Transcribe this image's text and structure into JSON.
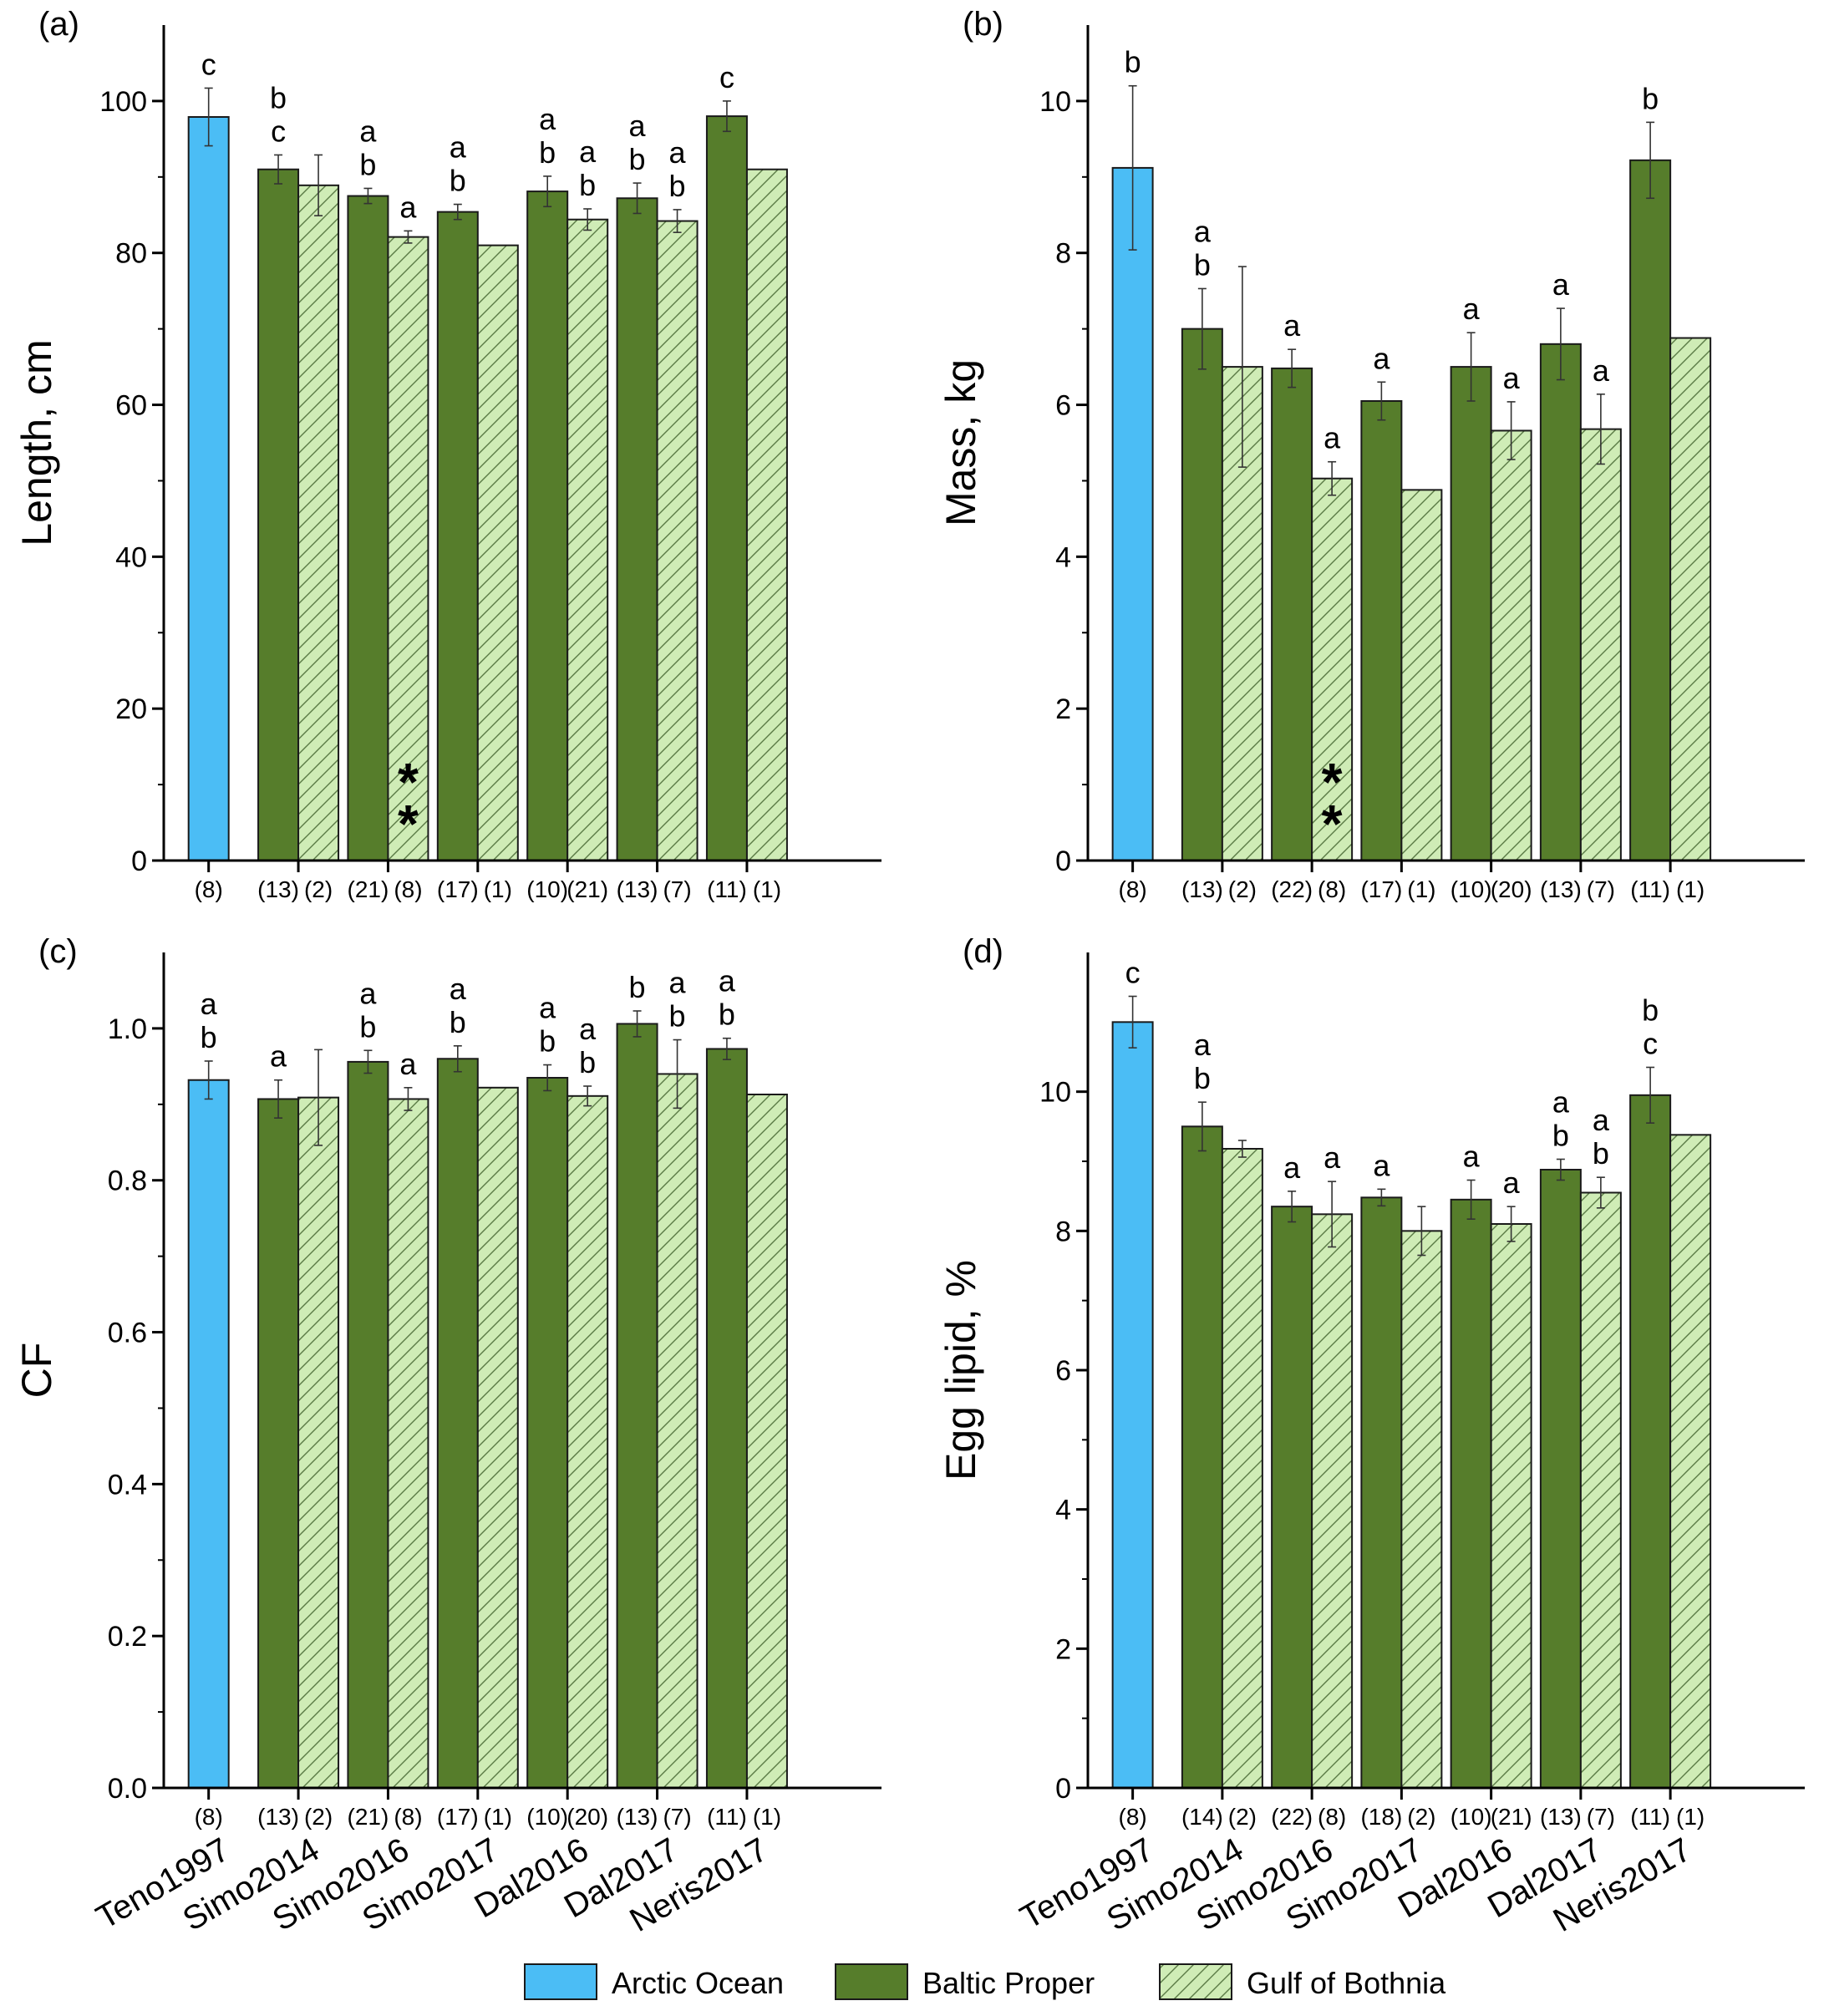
{
  "colors": {
    "Arctic Ocean": "#4bbdf5",
    "Baltic Proper": "#567d2b",
    "Gulf of Bothnia": "#cfecb6",
    "hatch": "#5a7a45",
    "outline": "#1a1a1a"
  },
  "categories": [
    "Teno1997",
    "Simo2014",
    "Simo2016",
    "Simo2017",
    "Dal2016",
    "Dal2017",
    "Neris2017"
  ],
  "legend": {
    "items": [
      {
        "name": "Arctic Ocean",
        "label": "Arctic Ocean",
        "fill": "#4bbdf5",
        "hatched": false
      },
      {
        "name": "Baltic Proper",
        "label": "Baltic Proper",
        "fill": "#567d2b",
        "hatched": false
      },
      {
        "name": "Gulf of Bothnia",
        "label": "Gulf of Bothnia",
        "fill": "#cfecb6",
        "hatched": true
      }
    ]
  },
  "chart_data": [
    {
      "type": "bar",
      "panel": "(a)",
      "ylabel": "Length, cm",
      "ylim": [
        0,
        110
      ],
      "yticks": [
        0,
        20,
        40,
        60,
        80,
        100
      ],
      "ytick_labels": [
        "0",
        "20",
        "40",
        "60",
        "80",
        "100"
      ],
      "categories": [
        "Teno1997",
        "Simo2014",
        "Simo2016",
        "Simo2017",
        "Dal2016",
        "Dal2017",
        "Neris2017"
      ],
      "bars": [
        {
          "category": "Teno1997",
          "group": "Arctic Ocean",
          "value": 97.9,
          "err": 3.8,
          "n": "(8)",
          "letters": [
            "c"
          ]
        },
        {
          "category": "Simo2014",
          "group": "Baltic Proper",
          "value": 91.0,
          "err": 1.9,
          "n": "(13)",
          "letters": [
            "b",
            "c"
          ]
        },
        {
          "category": "Simo2014",
          "group": "Gulf of Bothnia",
          "value": 88.9,
          "err": 4.0,
          "n": "(2)",
          "letters": []
        },
        {
          "category": "Simo2016",
          "group": "Baltic Proper",
          "value": 87.5,
          "err": 1.0,
          "n": "(21)",
          "letters": [
            "a",
            "b"
          ]
        },
        {
          "category": "Simo2016",
          "group": "Gulf of Bothnia",
          "value": 82.1,
          "err": 0.8,
          "n": "(8)",
          "letters": [
            "a"
          ],
          "note": "**"
        },
        {
          "category": "Simo2017",
          "group": "Baltic Proper",
          "value": 85.4,
          "err": 1.0,
          "n": "(17)",
          "letters": [
            "a",
            "b"
          ]
        },
        {
          "category": "Simo2017",
          "group": "Gulf of Bothnia",
          "value": 81.0,
          "err": 0,
          "n": "(1)",
          "letters": []
        },
        {
          "category": "Dal2016",
          "group": "Baltic Proper",
          "value": 88.1,
          "err": 2.0,
          "n": "(10)",
          "letters": [
            "a",
            "b"
          ]
        },
        {
          "category": "Dal2016",
          "group": "Gulf of Bothnia",
          "value": 84.4,
          "err": 1.4,
          "n": "(21)",
          "letters": [
            "a",
            "b"
          ]
        },
        {
          "category": "Dal2017",
          "group": "Baltic Proper",
          "value": 87.2,
          "err": 2.0,
          "n": "(13)",
          "letters": [
            "a",
            "b"
          ]
        },
        {
          "category": "Dal2017",
          "group": "Gulf of Bothnia",
          "value": 84.2,
          "err": 1.5,
          "n": "(7)",
          "letters": [
            "a",
            "b"
          ]
        },
        {
          "category": "Neris2017",
          "group": "Baltic Proper",
          "value": 98.0,
          "err": 2.0,
          "n": "(11)",
          "letters": [
            "c"
          ]
        },
        {
          "category": "Neris2017",
          "group": "Gulf of Bothnia",
          "value": 91.0,
          "err": 0,
          "n": "(1)",
          "letters": []
        }
      ]
    },
    {
      "type": "bar",
      "panel": "(b)",
      "ylabel": "Mass, kg",
      "ylim": [
        0,
        11
      ],
      "yticks": [
        0,
        2,
        4,
        6,
        8,
        10
      ],
      "ytick_labels": [
        "0",
        "2",
        "4",
        "6",
        "8",
        "10"
      ],
      "categories": [
        "Teno1997",
        "Simo2014",
        "Simo2016",
        "Simo2017",
        "Dal2016",
        "Dal2017",
        "Neris2017"
      ],
      "bars": [
        {
          "category": "Teno1997",
          "group": "Arctic Ocean",
          "value": 9.12,
          "err": 1.08,
          "n": "(8)",
          "letters": [
            "b"
          ]
        },
        {
          "category": "Simo2014",
          "group": "Baltic Proper",
          "value": 7.0,
          "err": 0.53,
          "n": "(13)",
          "letters": [
            "a",
            "b"
          ]
        },
        {
          "category": "Simo2014",
          "group": "Gulf of Bothnia",
          "value": 6.5,
          "err": 1.32,
          "n": "(2)",
          "letters": []
        },
        {
          "category": "Simo2016",
          "group": "Baltic Proper",
          "value": 6.48,
          "err": 0.25,
          "n": "(22)",
          "letters": [
            "a"
          ]
        },
        {
          "category": "Simo2016",
          "group": "Gulf of Bothnia",
          "value": 5.03,
          "err": 0.22,
          "n": "(8)",
          "letters": [
            "a"
          ],
          "note": "**"
        },
        {
          "category": "Simo2017",
          "group": "Baltic Proper",
          "value": 6.05,
          "err": 0.25,
          "n": "(17)",
          "letters": [
            "a"
          ]
        },
        {
          "category": "Simo2017",
          "group": "Gulf of Bothnia",
          "value": 4.88,
          "err": 0,
          "n": "(1)",
          "letters": []
        },
        {
          "category": "Dal2016",
          "group": "Baltic Proper",
          "value": 6.5,
          "err": 0.45,
          "n": "(10)",
          "letters": [
            "a"
          ]
        },
        {
          "category": "Dal2016",
          "group": "Gulf of Bothnia",
          "value": 5.66,
          "err": 0.38,
          "n": "(20)",
          "letters": [
            "a"
          ]
        },
        {
          "category": "Dal2017",
          "group": "Baltic Proper",
          "value": 6.8,
          "err": 0.47,
          "n": "(13)",
          "letters": [
            "a"
          ]
        },
        {
          "category": "Dal2017",
          "group": "Gulf of Bothnia",
          "value": 5.68,
          "err": 0.46,
          "n": "(7)",
          "letters": [
            "a"
          ]
        },
        {
          "category": "Neris2017",
          "group": "Baltic Proper",
          "value": 9.22,
          "err": 0.5,
          "n": "(11)",
          "letters": [
            "b"
          ]
        },
        {
          "category": "Neris2017",
          "group": "Gulf of Bothnia",
          "value": 6.88,
          "err": 0,
          "n": "(1)",
          "letters": []
        }
      ]
    },
    {
      "type": "bar",
      "panel": "(c)",
      "ylabel": "CF",
      "ylim": [
        0,
        1.1
      ],
      "yticks": [
        0,
        0.2,
        0.4,
        0.6,
        0.8,
        1.0
      ],
      "ytick_labels": [
        "0.0",
        "0.2",
        "0.4",
        "0.6",
        "0.8",
        "1.0"
      ],
      "categories": [
        "Teno1997",
        "Simo2014",
        "Simo2016",
        "Simo2017",
        "Dal2016",
        "Dal2017",
        "Neris2017"
      ],
      "bars": [
        {
          "category": "Teno1997",
          "group": "Arctic Ocean",
          "value": 0.932,
          "err": 0.025,
          "n": "(8)",
          "letters": [
            "a",
            "b"
          ]
        },
        {
          "category": "Simo2014",
          "group": "Baltic Proper",
          "value": 0.907,
          "err": 0.025,
          "n": "(13)",
          "letters": [
            "a"
          ]
        },
        {
          "category": "Simo2014",
          "group": "Gulf of Bothnia",
          "value": 0.909,
          "err": 0.063,
          "n": "(2)",
          "letters": []
        },
        {
          "category": "Simo2016",
          "group": "Baltic Proper",
          "value": 0.956,
          "err": 0.015,
          "n": "(21)",
          "letters": [
            "a",
            "b"
          ]
        },
        {
          "category": "Simo2016",
          "group": "Gulf of Bothnia",
          "value": 0.907,
          "err": 0.015,
          "n": "(8)",
          "letters": [
            "a"
          ]
        },
        {
          "category": "Simo2017",
          "group": "Baltic Proper",
          "value": 0.96,
          "err": 0.017,
          "n": "(17)",
          "letters": [
            "a",
            "b"
          ]
        },
        {
          "category": "Simo2017",
          "group": "Gulf of Bothnia",
          "value": 0.922,
          "err": 0,
          "n": "(1)",
          "letters": []
        },
        {
          "category": "Dal2016",
          "group": "Baltic Proper",
          "value": 0.935,
          "err": 0.017,
          "n": "(10)",
          "letters": [
            "a",
            "b"
          ]
        },
        {
          "category": "Dal2016",
          "group": "Gulf of Bothnia",
          "value": 0.911,
          "err": 0.013,
          "n": "(20)",
          "letters": [
            "a",
            "b"
          ]
        },
        {
          "category": "Dal2017",
          "group": "Baltic Proper",
          "value": 1.006,
          "err": 0.017,
          "n": "(13)",
          "letters": [
            "b"
          ]
        },
        {
          "category": "Dal2017",
          "group": "Gulf of Bothnia",
          "value": 0.94,
          "err": 0.045,
          "n": "(7)",
          "letters": [
            "a",
            "b"
          ]
        },
        {
          "category": "Neris2017",
          "group": "Baltic Proper",
          "value": 0.973,
          "err": 0.014,
          "n": "(11)",
          "letters": [
            "a",
            "b"
          ]
        },
        {
          "category": "Neris2017",
          "group": "Gulf of Bothnia",
          "value": 0.913,
          "err": 0,
          "n": "(1)",
          "letters": []
        }
      ]
    },
    {
      "type": "bar",
      "panel": "(d)",
      "ylabel": "Egg lipid, %",
      "ylim": [
        0,
        12
      ],
      "yticks": [
        0,
        2,
        4,
        6,
        8,
        10
      ],
      "ytick_labels": [
        "0",
        "2",
        "4",
        "6",
        "8",
        "10"
      ],
      "categories": [
        "Teno1997",
        "Simo2014",
        "Simo2016",
        "Simo2017",
        "Dal2016",
        "Dal2017",
        "Neris2017"
      ],
      "bars": [
        {
          "category": "Teno1997",
          "group": "Arctic Ocean",
          "value": 11.0,
          "err": 0.37,
          "n": "(8)",
          "letters": [
            "c"
          ]
        },
        {
          "category": "Simo2014",
          "group": "Baltic Proper",
          "value": 9.5,
          "err": 0.35,
          "n": "(14)",
          "letters": [
            "a",
            "b"
          ]
        },
        {
          "category": "Simo2014",
          "group": "Gulf of Bothnia",
          "value": 9.18,
          "err": 0.12,
          "n": "(2)",
          "letters": []
        },
        {
          "category": "Simo2016",
          "group": "Baltic Proper",
          "value": 8.35,
          "err": 0.22,
          "n": "(22)",
          "letters": [
            "a"
          ]
        },
        {
          "category": "Simo2016",
          "group": "Gulf of Bothnia",
          "value": 8.24,
          "err": 0.47,
          "n": "(8)",
          "letters": [
            "a"
          ]
        },
        {
          "category": "Simo2017",
          "group": "Baltic Proper",
          "value": 8.48,
          "err": 0.12,
          "n": "(18)",
          "letters": [
            "a"
          ]
        },
        {
          "category": "Simo2017",
          "group": "Gulf of Bothnia",
          "value": 8.0,
          "err": 0.35,
          "n": "(2)",
          "letters": []
        },
        {
          "category": "Dal2016",
          "group": "Baltic Proper",
          "value": 8.45,
          "err": 0.28,
          "n": "(10)",
          "letters": [
            "a"
          ]
        },
        {
          "category": "Dal2016",
          "group": "Gulf of Bothnia",
          "value": 8.1,
          "err": 0.25,
          "n": "(21)",
          "letters": [
            "a"
          ]
        },
        {
          "category": "Dal2017",
          "group": "Baltic Proper",
          "value": 8.88,
          "err": 0.15,
          "n": "(13)",
          "letters": [
            "a",
            "b"
          ]
        },
        {
          "category": "Dal2017",
          "group": "Gulf of Bothnia",
          "value": 8.55,
          "err": 0.22,
          "n": "(7)",
          "letters": [
            "a",
            "b"
          ]
        },
        {
          "category": "Neris2017",
          "group": "Baltic Proper",
          "value": 9.95,
          "err": 0.4,
          "n": "(11)",
          "letters": [
            "b",
            "c"
          ]
        },
        {
          "category": "Neris2017",
          "group": "Gulf of Bothnia",
          "value": 9.38,
          "err": 0,
          "n": "(1)",
          "letters": []
        }
      ]
    }
  ]
}
